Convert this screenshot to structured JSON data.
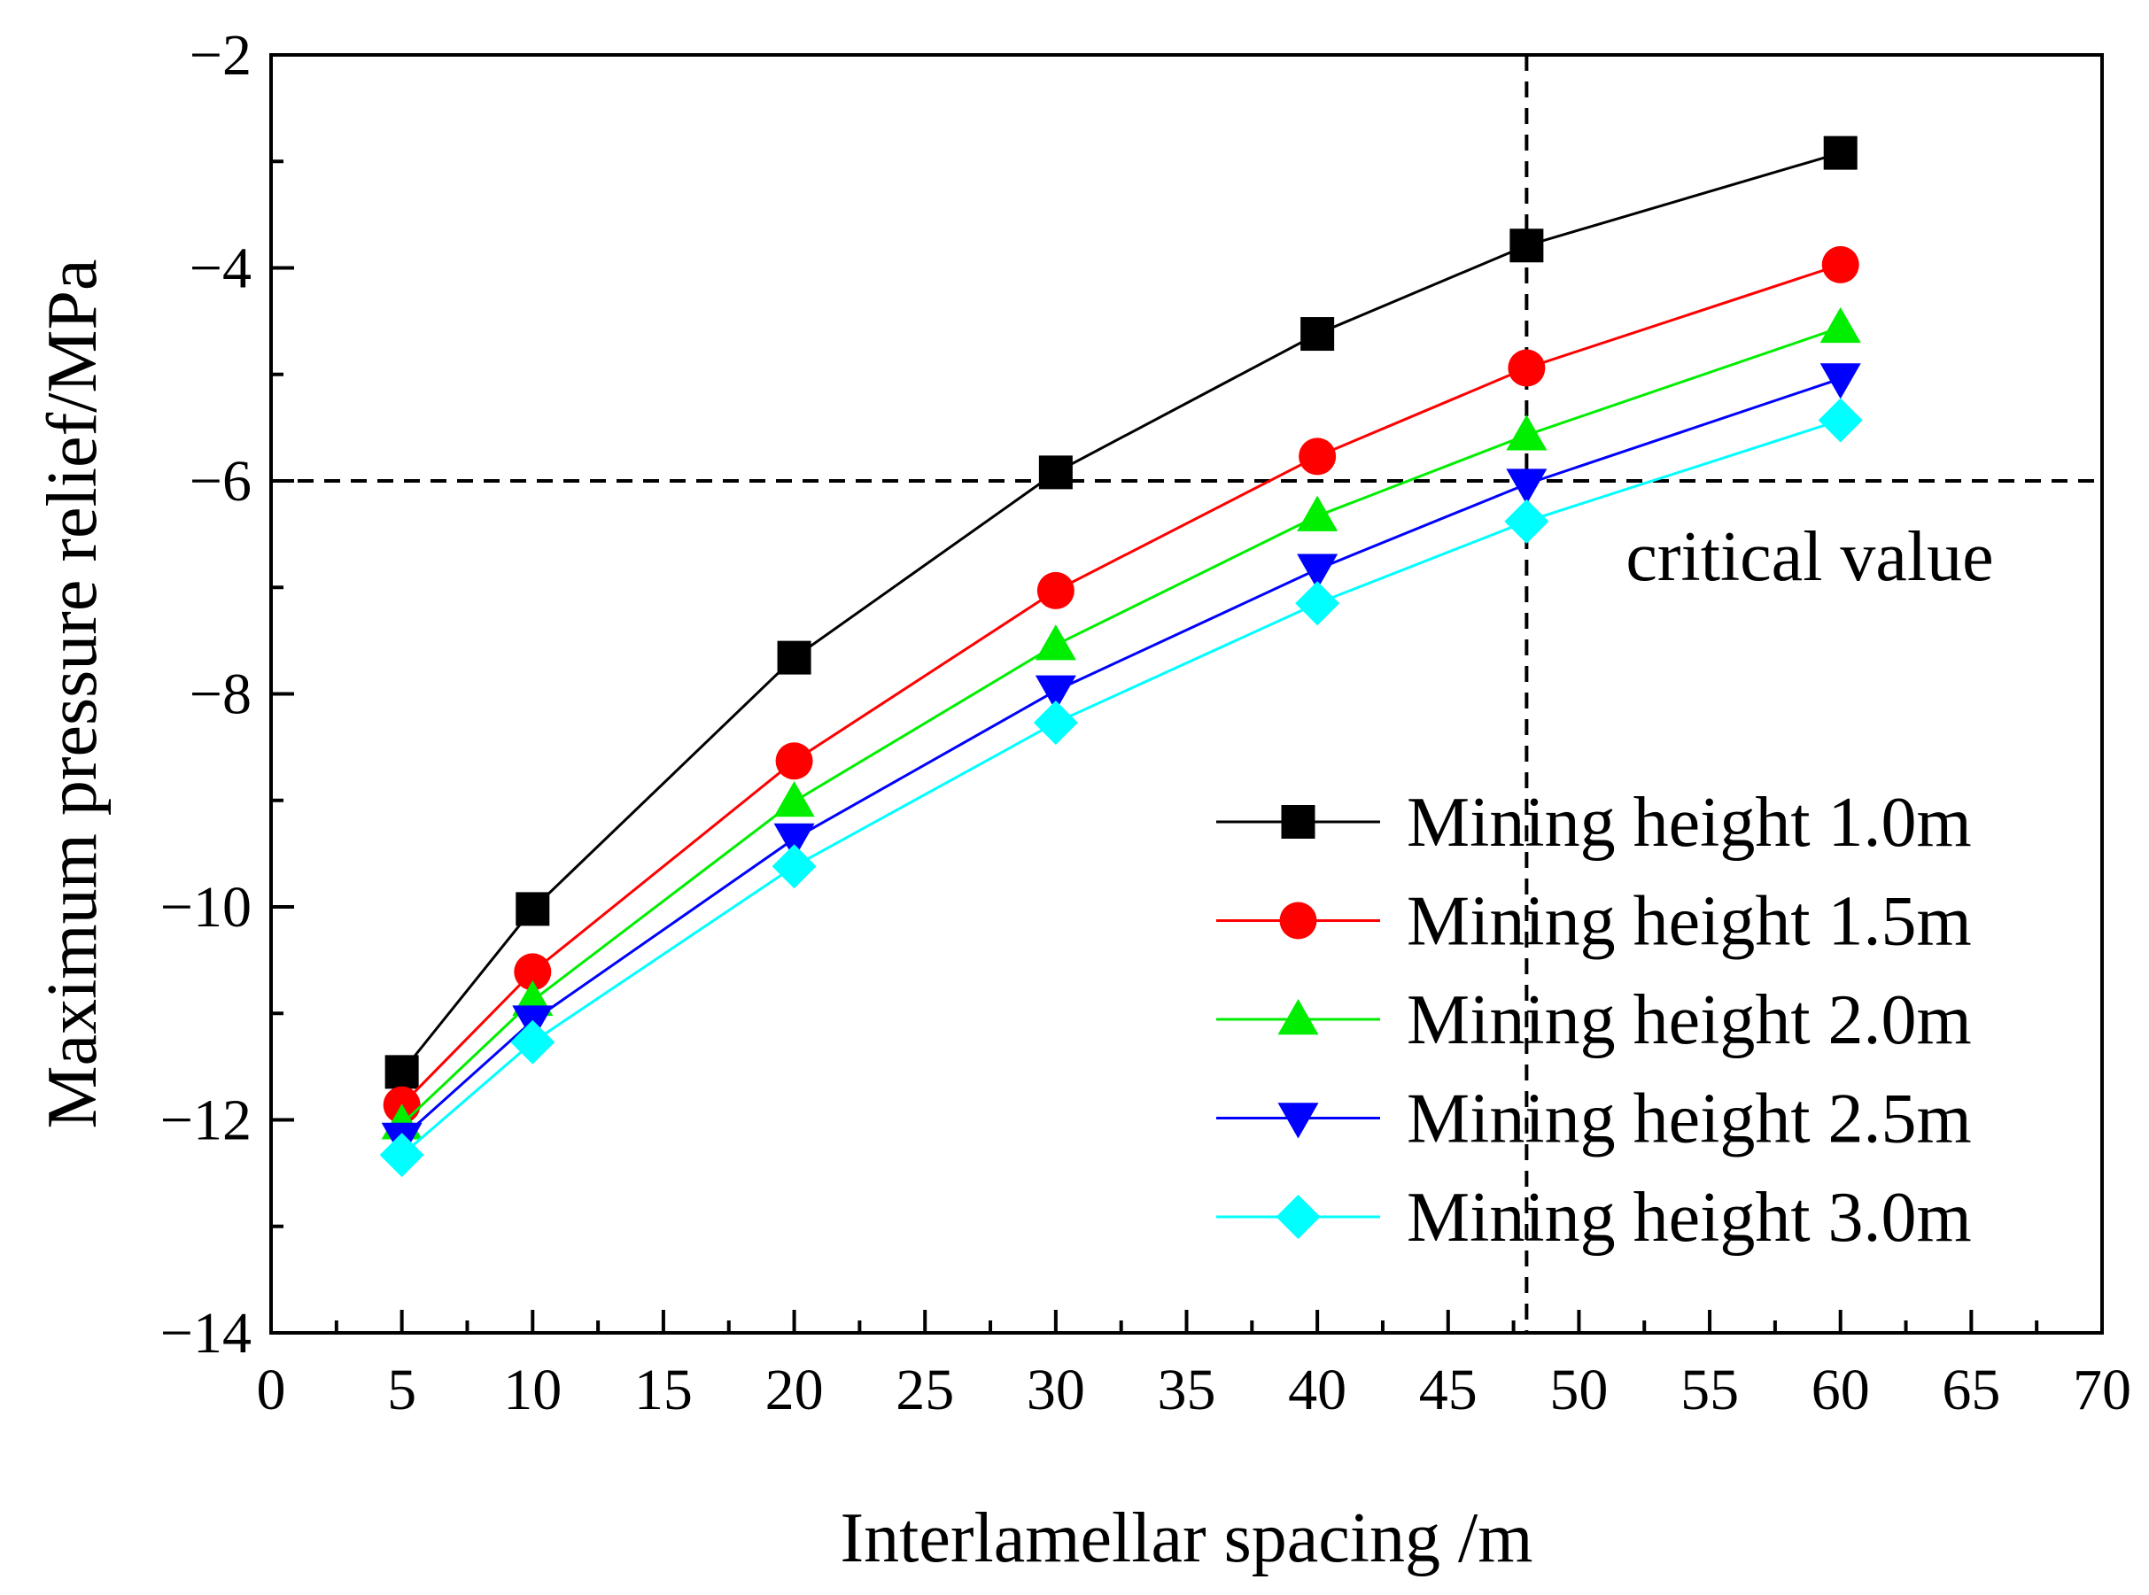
{
  "chart_data": {
    "type": "line",
    "xlabel": "Interlamellar spacing /m",
    "ylabel": "Maximum pressure relief/MPa",
    "xlim": [
      0,
      70
    ],
    "ylim": [
      -14,
      -2
    ],
    "xticks": [
      0,
      5,
      10,
      15,
      20,
      25,
      30,
      35,
      40,
      45,
      50,
      55,
      60,
      65,
      70
    ],
    "xtick_labels": [
      "0",
      "5",
      "10",
      "15",
      "20",
      "25",
      "30",
      "35",
      "40",
      "45",
      "50",
      "55",
      "60",
      "65",
      "70"
    ],
    "yticks": [
      -14,
      -12,
      -10,
      -8,
      -6,
      -4,
      -2
    ],
    "ytick_labels": [
      "−14",
      "−12",
      "−10",
      "−8",
      "−6",
      "−4",
      "−2"
    ],
    "x": [
      5,
      10,
      20,
      30,
      40,
      48,
      60
    ],
    "series": [
      {
        "name": "Mining height 1.0m",
        "color": "#000000",
        "marker": "square",
        "values": [
          -11.55,
          -10.02,
          -7.66,
          -5.92,
          -4.62,
          -3.79,
          -2.92
        ]
      },
      {
        "name": "Mining height 1.5m",
        "color": "#ff0000",
        "marker": "circle",
        "values": [
          -11.86,
          -10.61,
          -8.63,
          -7.03,
          -5.77,
          -4.94,
          -3.97
        ]
      },
      {
        "name": "Mining height 2.0m",
        "color": "#00ee00",
        "marker": "triangle-up",
        "values": [
          -12.04,
          -10.88,
          -9.01,
          -7.54,
          -6.33,
          -5.57,
          -4.56
        ]
      },
      {
        "name": "Mining height 2.5m",
        "color": "#0000ff",
        "marker": "triangle-down",
        "values": [
          -12.17,
          -11.07,
          -9.36,
          -7.97,
          -6.83,
          -6.03,
          -5.04
        ]
      },
      {
        "name": "Mining height 3.0m",
        "color": "#00ffff",
        "marker": "diamond",
        "values": [
          -12.33,
          -11.27,
          -9.62,
          -8.27,
          -7.15,
          -6.38,
          -5.43
        ]
      }
    ],
    "reference_lines": {
      "horizontal_y": -6,
      "vertical_x": 48,
      "style": "dashed"
    },
    "annotation": "critical value",
    "legend_position": "lower-right",
    "grid": false
  }
}
